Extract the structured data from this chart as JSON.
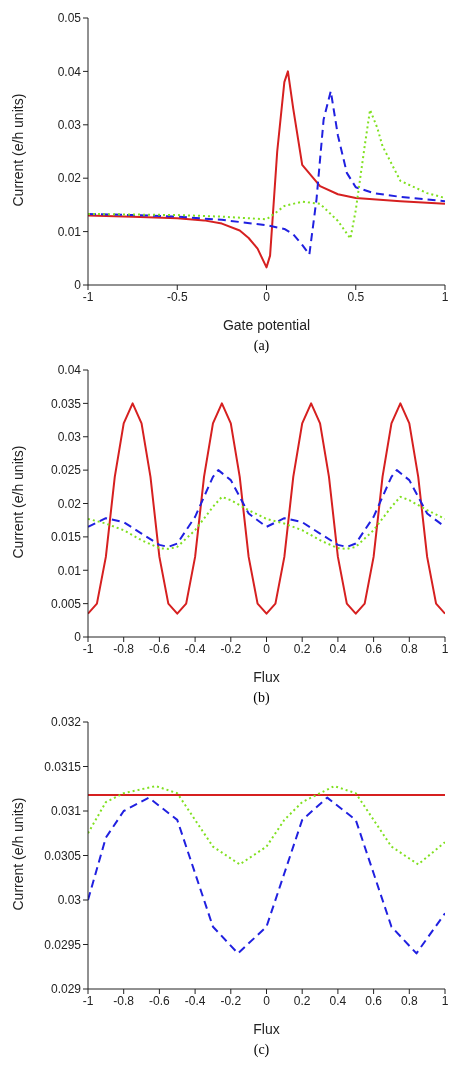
{
  "chart_data": [
    {
      "type": "line",
      "xlabel": "Gate potential",
      "ylabel": "Current (e/h units)",
      "annotations": [
        "(a)"
      ],
      "xlim": [
        -1,
        1
      ],
      "xticks": [
        -1,
        -0.5,
        0,
        0.5,
        1
      ],
      "ylim": [
        0,
        0.05
      ],
      "yticks": [
        0,
        0.01,
        0.02,
        0.03,
        0.04,
        0.05
      ],
      "grid": false,
      "legend": false,
      "marker": "none",
      "series": [
        {
          "color": "#d62020",
          "line_style": "solid",
          "x": [
            -1,
            -0.75,
            -0.5,
            -0.35,
            -0.25,
            -0.15,
            -0.1,
            -0.05,
            0,
            0.02,
            0.06,
            0.1,
            0.12,
            0.15,
            0.2,
            0.3,
            0.4,
            0.5,
            0.75,
            1
          ],
          "values": [
            0.013,
            0.0128,
            0.0125,
            0.0121,
            0.0115,
            0.0102,
            0.0088,
            0.0068,
            0.0033,
            0.0055,
            0.025,
            0.038,
            0.04,
            0.033,
            0.0225,
            0.0185,
            0.017,
            0.0163,
            0.0157,
            0.0152
          ]
        },
        {
          "color": "#2020e0",
          "line_style": "dashed",
          "x": [
            -1,
            -0.75,
            -0.5,
            -0.25,
            0,
            0.1,
            0.15,
            0.2,
            0.24,
            0.28,
            0.32,
            0.36,
            0.4,
            0.45,
            0.5,
            0.6,
            0.75,
            1
          ],
          "values": [
            0.0133,
            0.0131,
            0.0128,
            0.0122,
            0.0112,
            0.0105,
            0.0095,
            0.0075,
            0.0057,
            0.016,
            0.031,
            0.0363,
            0.028,
            0.021,
            0.0183,
            0.0172,
            0.0165,
            0.0157
          ]
        },
        {
          "color": "#80e020",
          "line_style": "dotted",
          "x": [
            -1,
            -0.5,
            -0.25,
            0,
            0.05,
            0.1,
            0.2,
            0.3,
            0.4,
            0.47,
            0.5,
            0.55,
            0.58,
            0.62,
            0.65,
            0.75,
            0.9,
            1
          ],
          "values": [
            0.0133,
            0.0131,
            0.0128,
            0.0123,
            0.0135,
            0.0148,
            0.0156,
            0.0152,
            0.012,
            0.0087,
            0.014,
            0.026,
            0.0328,
            0.0295,
            0.026,
            0.0195,
            0.0172,
            0.0163
          ]
        }
      ]
    },
    {
      "type": "line",
      "xlabel": "Flux",
      "ylabel": "Current (e/h units)",
      "annotations": [
        "(b)"
      ],
      "xlim": [
        -1,
        1
      ],
      "xticks": [
        -1,
        -0.8,
        -0.6,
        -0.4,
        -0.2,
        0,
        0.2,
        0.4,
        0.6,
        0.8,
        1
      ],
      "ylim": [
        0,
        0.04
      ],
      "yticks": [
        0,
        0.005,
        0.01,
        0.015,
        0.02,
        0.025,
        0.03,
        0.035,
        0.04
      ],
      "grid": false,
      "legend": false,
      "marker": "none",
      "series": [
        {
          "color": "#d62020",
          "line_style": "solid",
          "x": [
            -1,
            -0.95,
            -0.9,
            -0.85,
            -0.8,
            -0.75,
            -0.7,
            -0.65,
            -0.6,
            -0.55,
            -0.5,
            -0.45,
            -0.4,
            -0.35,
            -0.3,
            -0.25,
            -0.2,
            -0.15,
            -0.1,
            -0.05,
            0,
            0.05,
            0.1,
            0.15,
            0.2,
            0.25,
            0.3,
            0.35,
            0.4,
            0.45,
            0.5,
            0.55,
            0.6,
            0.65,
            0.7,
            0.75,
            0.8,
            0.85,
            0.9,
            0.95,
            1
          ],
          "values": [
            0.0035,
            0.005,
            0.012,
            0.024,
            0.032,
            0.035,
            0.032,
            0.024,
            0.012,
            0.005,
            0.0035,
            0.005,
            0.012,
            0.024,
            0.032,
            0.035,
            0.032,
            0.024,
            0.012,
            0.005,
            0.0035,
            0.005,
            0.012,
            0.024,
            0.032,
            0.035,
            0.032,
            0.024,
            0.012,
            0.005,
            0.0035,
            0.005,
            0.012,
            0.024,
            0.032,
            0.035,
            0.032,
            0.024,
            0.012,
            0.005,
            0.0035
          ]
        },
        {
          "color": "#2020e0",
          "line_style": "dashed",
          "x": [
            -1,
            -0.9,
            -0.8,
            -0.7,
            -0.6,
            -0.55,
            -0.5,
            -0.4,
            -0.3,
            -0.27,
            -0.2,
            -0.1,
            0,
            0.1,
            0.2,
            0.3,
            0.4,
            0.45,
            0.5,
            0.6,
            0.7,
            0.73,
            0.8,
            0.9,
            1
          ],
          "values": [
            0.0165,
            0.0178,
            0.0172,
            0.0155,
            0.0138,
            0.0135,
            0.014,
            0.018,
            0.024,
            0.025,
            0.0235,
            0.0185,
            0.0165,
            0.0178,
            0.0172,
            0.0155,
            0.0138,
            0.0135,
            0.014,
            0.018,
            0.024,
            0.025,
            0.0235,
            0.0185,
            0.0165
          ]
        },
        {
          "color": "#80e020",
          "line_style": "dotted",
          "x": [
            -1,
            -0.9,
            -0.8,
            -0.7,
            -0.6,
            -0.55,
            -0.5,
            -0.4,
            -0.3,
            -0.25,
            -0.2,
            -0.1,
            0,
            0.1,
            0.2,
            0.3,
            0.4,
            0.45,
            0.5,
            0.6,
            0.7,
            0.75,
            0.8,
            0.9,
            1
          ],
          "values": [
            0.0177,
            0.017,
            0.016,
            0.0145,
            0.0133,
            0.0132,
            0.0135,
            0.016,
            0.0195,
            0.021,
            0.0205,
            0.019,
            0.0177,
            0.017,
            0.016,
            0.0145,
            0.0133,
            0.0132,
            0.0135,
            0.016,
            0.0195,
            0.021,
            0.0205,
            0.019,
            0.0177
          ]
        }
      ]
    },
    {
      "type": "line",
      "xlabel": "Flux",
      "ylabel": "Current (e/h units)",
      "annotations": [
        "(c)"
      ],
      "xlim": [
        -1,
        1
      ],
      "xticks": [
        -1,
        -0.8,
        -0.6,
        -0.4,
        -0.2,
        0,
        0.2,
        0.4,
        0.6,
        0.8,
        1
      ],
      "ylim": [
        0.029,
        0.032
      ],
      "yticks": [
        0.029,
        0.0295,
        0.03,
        0.0305,
        0.031,
        0.0315,
        0.032
      ],
      "grid": false,
      "legend": false,
      "marker": "none",
      "series": [
        {
          "color": "#d62020",
          "line_style": "solid",
          "x": [
            -1,
            1
          ],
          "values": [
            0.03118,
            0.03118
          ]
        },
        {
          "color": "#2020e0",
          "line_style": "dashed",
          "x": [
            -1,
            -0.9,
            -0.8,
            -0.66,
            -0.5,
            -0.4,
            -0.3,
            -0.16,
            0,
            0.1,
            0.2,
            0.34,
            0.5,
            0.6,
            0.7,
            0.84,
            1
          ],
          "values": [
            0.03,
            0.0307,
            0.031,
            0.03115,
            0.0309,
            0.0303,
            0.0297,
            0.0294,
            0.0297,
            0.0303,
            0.0309,
            0.03115,
            0.0309,
            0.0303,
            0.0297,
            0.0294,
            0.02985
          ]
        },
        {
          "color": "#80e020",
          "line_style": "dotted",
          "x": [
            -1,
            -0.9,
            -0.8,
            -0.62,
            -0.5,
            -0.4,
            -0.3,
            -0.15,
            0,
            0.1,
            0.2,
            0.38,
            0.5,
            0.6,
            0.7,
            0.85,
            1
          ],
          "values": [
            0.03075,
            0.0311,
            0.0312,
            0.03128,
            0.0312,
            0.0309,
            0.0306,
            0.0304,
            0.0306,
            0.0309,
            0.0311,
            0.03128,
            0.0312,
            0.0309,
            0.0306,
            0.0304,
            0.03065
          ]
        }
      ]
    }
  ]
}
